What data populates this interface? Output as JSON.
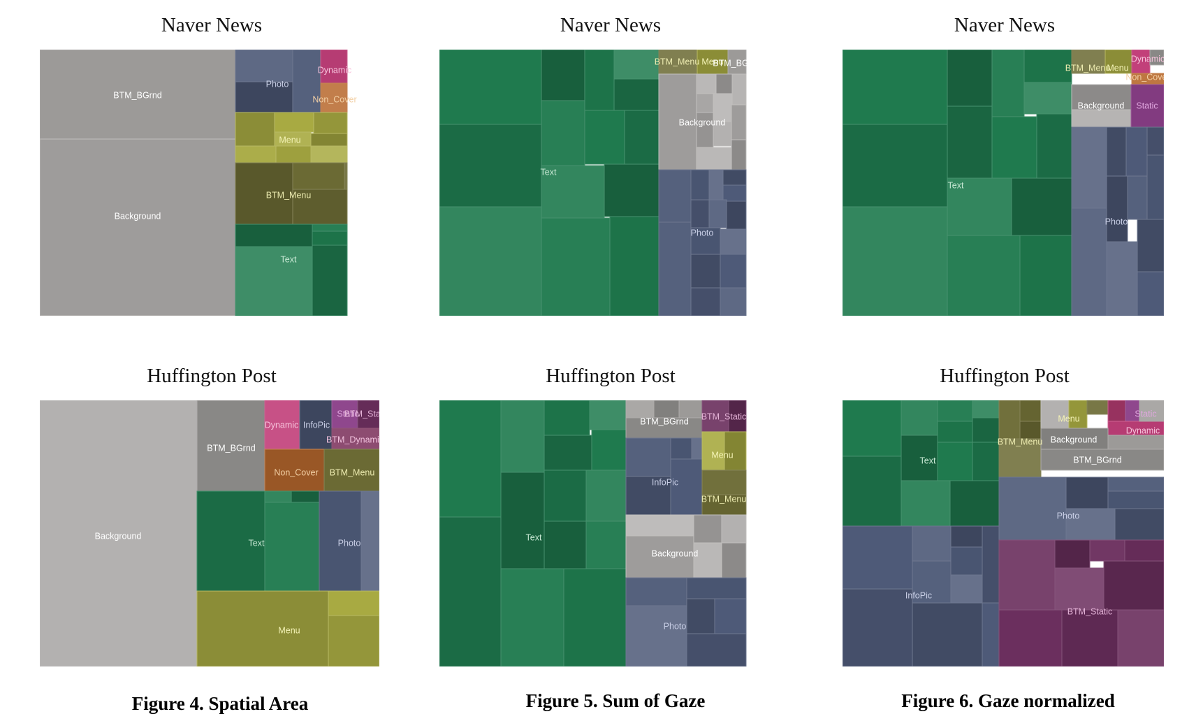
{
  "captions": {
    "fig4": "Figure 4. Spatial Area",
    "fig5": "Figure 5. Sum of Gaze",
    "fig6": "Figure 6. Gaze normalized"
  },
  "colors": {
    "text": "#1f7a4e",
    "background": "#b3b1b0",
    "btm_bgrnd": "#9c9a98",
    "photo": "#4e5a78",
    "infopic": "#4e5a78",
    "menu": "#a8aa42",
    "btm_menu": "#6b6a34",
    "dynamic": "#c2407a",
    "non_cover": "#b8692e",
    "static": "#8a3f88",
    "btm_static": "#6b2f5e",
    "btm_dynamic": "#7a2f5a"
  },
  "chart_data": [
    {
      "type": "treemap",
      "title": "Naver News",
      "leaves": [
        {
          "label": "BTM_BGrnd",
          "color": "#9c9a98"
        },
        {
          "label": "Background",
          "color": "#b3b1b0"
        },
        {
          "label": "Photo",
          "color": "#4e5a78"
        },
        {
          "label": "Dynamic",
          "color": "#c2407a"
        },
        {
          "label": "Non_Cover",
          "color": "#b8692e"
        },
        {
          "label": "Menu",
          "color": "#a8aa42"
        },
        {
          "label": "BTM_Menu",
          "color": "#6b6a34"
        },
        {
          "label": "Text",
          "color": "#1f7a4e"
        }
      ]
    },
    {
      "type": "treemap",
      "title": "Naver News",
      "leaves": [
        {
          "label": "Text",
          "color": "#1f7a4e"
        },
        {
          "label": "BTM_Menu",
          "color": "#6b6a34"
        },
        {
          "label": "Menu",
          "color": "#a8aa42"
        },
        {
          "label": "BTM_BGrnd",
          "color": "#9c9a98"
        },
        {
          "label": "Background",
          "color": "#b3b1b0"
        },
        {
          "label": "Photo",
          "color": "#4e5a78"
        }
      ]
    },
    {
      "type": "treemap",
      "title": "Naver News",
      "leaves": [
        {
          "label": "Text",
          "color": "#1f7a4e"
        },
        {
          "label": "BTM_Menu",
          "color": "#6b6a34"
        },
        {
          "label": "Menu",
          "color": "#a8aa42"
        },
        {
          "label": "Dynamic",
          "color": "#c2407a"
        },
        {
          "label": "Non_Cover",
          "color": "#b8692e"
        },
        {
          "label": "Background",
          "color": "#b3b1b0"
        },
        {
          "label": "Static",
          "color": "#8a3f88"
        },
        {
          "label": "Photo",
          "color": "#4e5a78"
        }
      ]
    },
    {
      "type": "treemap",
      "title": "Huffington Post",
      "leaves": [
        {
          "label": "Background",
          "color": "#b3b1b0"
        },
        {
          "label": "BTM_BGrnd",
          "color": "#9c9a98"
        },
        {
          "label": "Dynamic",
          "color": "#c2407a"
        },
        {
          "label": "InfoPic",
          "color": "#4e5a78"
        },
        {
          "label": "Static",
          "color": "#8a3f88"
        },
        {
          "label": "BTM_Static",
          "color": "#6b2f5e"
        },
        {
          "label": "BTM_Dynamic",
          "color": "#7a2f5a"
        },
        {
          "label": "Non_Cover",
          "color": "#b8692e"
        },
        {
          "label": "BTM_Menu",
          "color": "#6b6a34"
        },
        {
          "label": "Text",
          "color": "#1f7a4e"
        },
        {
          "label": "Photo",
          "color": "#4e5a78"
        },
        {
          "label": "Menu",
          "color": "#a8aa42"
        }
      ]
    },
    {
      "type": "treemap",
      "title": "Huffington Post",
      "leaves": [
        {
          "label": "Text",
          "color": "#1f7a4e"
        },
        {
          "label": "BTM_BGrnd",
          "color": "#9c9a98"
        },
        {
          "label": "BTM_Static",
          "color": "#6b2f5e"
        },
        {
          "label": "InfoPic",
          "color": "#4e5a78"
        },
        {
          "label": "Menu",
          "color": "#a8aa42"
        },
        {
          "label": "BTM_Menu",
          "color": "#6b6a34"
        },
        {
          "label": "Background",
          "color": "#b3b1b0"
        },
        {
          "label": "Photo",
          "color": "#4e5a78"
        }
      ]
    },
    {
      "type": "treemap",
      "title": "Huffington Post",
      "leaves": [
        {
          "label": "Text",
          "color": "#1f7a4e"
        },
        {
          "label": "Background",
          "color": "#b3b1b0"
        },
        {
          "label": "Menu",
          "color": "#a8aa42"
        },
        {
          "label": "BTM_Menu",
          "color": "#6b6a34"
        },
        {
          "label": "BTM_BGrnd",
          "color": "#9c9a98"
        },
        {
          "label": "Static",
          "color": "#8a3f88"
        },
        {
          "label": "Dynamic",
          "color": "#c2407a"
        },
        {
          "label": "Photo",
          "color": "#4e5a78"
        },
        {
          "label": "InfoPic",
          "color": "#4e5a78"
        },
        {
          "label": "BTM_Static",
          "color": "#6b2f5e"
        }
      ]
    }
  ]
}
